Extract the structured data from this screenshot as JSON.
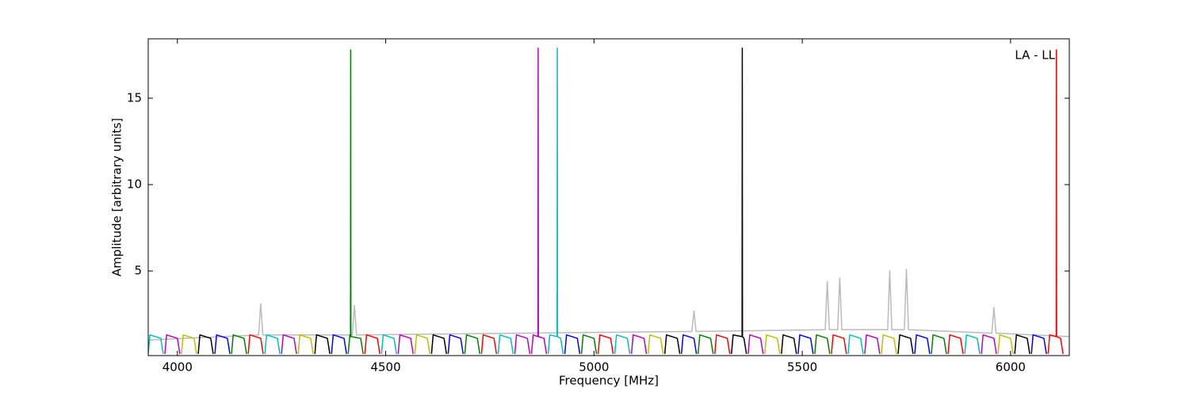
{
  "chart_data": {
    "type": "line",
    "xlabel": "Frequency [MHz]",
    "ylabel": "Amplitude [arbitrary units]",
    "annotation": "LA - LL",
    "xlim": [
      3930,
      6141
    ],
    "ylim": [
      0.1,
      18.44
    ],
    "xticks": [
      4000,
      4500,
      5000,
      5500,
      6000
    ],
    "yticks": [
      5,
      10,
      15
    ],
    "series": [
      {
        "color": "#bbbbbb",
        "x": [
          3930,
          4195,
          4200,
          4205,
          4420,
          4425,
          4430,
          5235,
          5240,
          5245,
          5555,
          5560,
          5565,
          5585,
          5590,
          5595,
          5705,
          5710,
          5715,
          5745,
          5750,
          5755,
          5955,
          5960,
          5965,
          6140
        ],
        "values": [
          1.0,
          1.3,
          3.1,
          1.3,
          1.3,
          3.0,
          1.3,
          1.5,
          2.7,
          1.5,
          1.6,
          4.4,
          1.6,
          1.6,
          4.6,
          1.6,
          1.6,
          5.0,
          1.6,
          1.6,
          5.1,
          1.6,
          1.4,
          2.9,
          1.4,
          1.2
        ]
      },
      {
        "color": "#0000ff",
        "x": [
          4090,
          4094,
          4120,
          4126,
          null,
          4370,
          4374,
          4400,
          4406,
          null,
          4650,
          4654,
          4680,
          4686,
          null,
          4930,
          4934,
          4960,
          4966,
          null,
          5210,
          5214,
          5240,
          5246,
          null,
          5490,
          5494,
          5520,
          5526,
          null,
          5770,
          5774,
          5800,
          5806,
          null,
          6050,
          6054,
          6080,
          6086
        ],
        "values": [
          0.2,
          1.3,
          1.1,
          0.2,
          null,
          0.2,
          1.3,
          1.1,
          0.2,
          null,
          0.2,
          1.3,
          1.1,
          0.2,
          null,
          0.2,
          1.3,
          1.1,
          0.2,
          null,
          0.2,
          1.3,
          1.1,
          0.2,
          null,
          0.2,
          1.3,
          1.1,
          0.2,
          null,
          0.2,
          1.3,
          1.1,
          0.2,
          null,
          0.2,
          1.3,
          1.1,
          0.2
        ]
      },
      {
        "color": "#008000",
        "x": [
          4130,
          4134,
          4160,
          4166,
          null,
          4410,
          4414,
          4415.5,
          4416,
          4416.5,
          4440,
          4446,
          null,
          4690,
          4694,
          4720,
          4726,
          null,
          4970,
          4974,
          5000,
          5006,
          null,
          5250,
          5254,
          5280,
          5286,
          null,
          5530,
          5534,
          5560,
          5566,
          null,
          5810,
          5814,
          5840,
          5846
        ],
        "values": [
          0.2,
          1.3,
          1.1,
          0.2,
          null,
          0.2,
          1.3,
          1.2,
          17.8,
          1.2,
          1.1,
          0.2,
          null,
          0.2,
          1.3,
          1.1,
          0.2,
          null,
          0.2,
          1.3,
          1.1,
          0.2,
          null,
          0.2,
          1.3,
          1.1,
          0.2,
          null,
          0.2,
          1.3,
          1.1,
          0.2,
          null,
          0.2,
          1.3,
          1.1,
          0.2
        ]
      },
      {
        "color": "#ff0000",
        "x": [
          4170,
          4174,
          4200,
          4206,
          null,
          4450,
          4454,
          4480,
          4486,
          null,
          4730,
          4734,
          4760,
          4766,
          null,
          5010,
          5014,
          5040,
          5046,
          null,
          5290,
          5294,
          5320,
          5326,
          null,
          5570,
          5574,
          5600,
          5606,
          null,
          5850,
          5854,
          5880,
          5886,
          null,
          6090,
          6094,
          6109.5,
          6110,
          6110.5,
          6120,
          6126
        ],
        "values": [
          0.2,
          1.3,
          1.1,
          0.2,
          null,
          0.2,
          1.3,
          1.1,
          0.2,
          null,
          0.2,
          1.3,
          1.1,
          0.2,
          null,
          0.2,
          1.3,
          1.1,
          0.2,
          null,
          0.2,
          1.3,
          1.1,
          0.2,
          null,
          0.2,
          1.3,
          1.1,
          0.2,
          null,
          0.2,
          1.3,
          1.1,
          0.2,
          null,
          0.2,
          1.3,
          1.2,
          17.8,
          1.2,
          1.1,
          0.2
        ]
      },
      {
        "color": "#00bfbf",
        "x": [
          3930,
          3934,
          3960,
          3966,
          null,
          4210,
          4214,
          4240,
          4246,
          null,
          4490,
          4494,
          4520,
          4526,
          null,
          4770,
          4774,
          4800,
          4806,
          null,
          4890,
          4894,
          4911.5,
          4912,
          4912.5,
          4920,
          4926,
          null,
          5050,
          5054,
          5080,
          5086,
          null,
          5610,
          5614,
          5640,
          5646,
          null,
          5890,
          5894,
          5920,
          5926
        ],
        "values": [
          0.2,
          1.3,
          1.1,
          0.2,
          null,
          0.2,
          1.3,
          1.1,
          0.2,
          null,
          0.2,
          1.3,
          1.1,
          0.2,
          null,
          0.2,
          1.3,
          1.1,
          0.2,
          null,
          0.2,
          1.3,
          1.2,
          17.9,
          1.2,
          1.1,
          0.2,
          null,
          0.2,
          1.3,
          1.1,
          0.2,
          null,
          0.2,
          1.3,
          1.1,
          0.2,
          null,
          0.2,
          1.3,
          1.1,
          0.2
        ]
      },
      {
        "color": "#bf00bf",
        "x": [
          3970,
          3974,
          4000,
          4006,
          null,
          4250,
          4254,
          4280,
          4286,
          null,
          4530,
          4534,
          4560,
          4566,
          null,
          4810,
          4814,
          4840,
          4846,
          null,
          4850,
          4854,
          4865.5,
          4866,
          4866.5,
          4880,
          4886,
          null,
          5090,
          5094,
          5120,
          5126,
          null,
          5370,
          5374,
          5400,
          5406,
          null,
          5650,
          5654,
          5680,
          5686,
          null,
          5930,
          5934,
          5960,
          5966
        ],
        "values": [
          0.2,
          1.3,
          1.1,
          0.2,
          null,
          0.2,
          1.3,
          1.1,
          0.2,
          null,
          0.2,
          1.3,
          1.1,
          0.2,
          null,
          0.2,
          1.3,
          1.1,
          0.2,
          null,
          0.2,
          1.3,
          1.2,
          17.9,
          1.2,
          1.1,
          0.2,
          null,
          0.2,
          1.3,
          1.1,
          0.2,
          null,
          0.2,
          1.3,
          1.1,
          0.2,
          null,
          0.2,
          1.3,
          1.1,
          0.2,
          null,
          0.2,
          1.3,
          1.1,
          0.2
        ]
      },
      {
        "color": "#bfbf00",
        "x": [
          4010,
          4014,
          4040,
          4046,
          null,
          4290,
          4294,
          4320,
          4326,
          null,
          4570,
          4574,
          4600,
          4606,
          null,
          5130,
          5134,
          5160,
          5166,
          null,
          5410,
          5414,
          5440,
          5446,
          null,
          5690,
          5694,
          5720,
          5726,
          null,
          5970,
          5974,
          6000,
          6006
        ],
        "values": [
          0.2,
          1.3,
          1.1,
          0.2,
          null,
          0.2,
          1.3,
          1.1,
          0.2,
          null,
          0.2,
          1.3,
          1.1,
          0.2,
          null,
          0.2,
          1.3,
          1.1,
          0.2,
          null,
          0.2,
          1.3,
          1.1,
          0.2,
          null,
          0.2,
          1.3,
          1.1,
          0.2,
          null,
          0.2,
          1.3,
          1.1,
          0.2
        ]
      },
      {
        "color": "#000000",
        "x": [
          4050,
          4054,
          4080,
          4086,
          null,
          4330,
          4334,
          4360,
          4366,
          null,
          4610,
          4614,
          4640,
          4646,
          null,
          5170,
          5174,
          5200,
          5206,
          null,
          5330,
          5334,
          5355.5,
          5356,
          5356.5,
          5360,
          5366,
          null,
          5450,
          5454,
          5480,
          5486,
          null,
          5730,
          5734,
          5760,
          5766,
          null,
          6010,
          6014,
          6040,
          6046
        ],
        "values": [
          0.2,
          1.3,
          1.1,
          0.2,
          null,
          0.2,
          1.3,
          1.1,
          0.2,
          null,
          0.2,
          1.3,
          1.1,
          0.2,
          null,
          0.2,
          1.3,
          1.1,
          0.2,
          null,
          0.2,
          1.3,
          1.2,
          17.9,
          1.2,
          1.1,
          0.2,
          null,
          0.2,
          1.3,
          1.1,
          0.2,
          null,
          0.2,
          1.3,
          1.1,
          0.2,
          null,
          0.2,
          1.3,
          1.1,
          0.2
        ]
      }
    ]
  }
}
